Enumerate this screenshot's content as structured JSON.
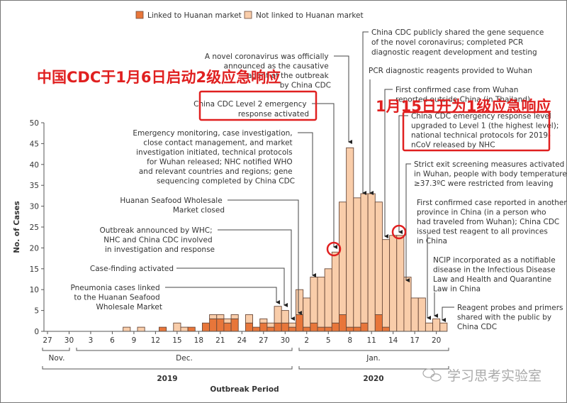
{
  "legend": {
    "linked_label": "Linked to Huanan market",
    "not_linked_label": "Not linked to Huanan market"
  },
  "colors": {
    "linked": "#e8763a",
    "not_linked": "#f9cdaa",
    "bar_stroke": "#6b4a3a",
    "highlight_red": "#e02020",
    "axis": "#555555"
  },
  "overlays": {
    "level2_note": "中国CDC于1月6日启动2级应急响应",
    "level1_note": "1月15日开为1级应急响应",
    "watermark": "学习思考实验室"
  },
  "annotations": [
    {
      "id": "gene-seq",
      "lines": [
        "China CDC publicly shared the gene sequence",
        "of the novel coronavirus; completed PCR",
        "diagnostic reagent development and testing"
      ]
    },
    {
      "id": "novel-cov",
      "lines": [
        "A novel coronavirus was officially",
        "announced as the causative",
        "agent of the outbreak",
        "by China CDC"
      ]
    },
    {
      "id": "pcr-wuhan",
      "lines": [
        "PCR diagnostic reagents provided to Wuhan"
      ]
    },
    {
      "id": "first-thailand",
      "lines": [
        "First confirmed case from Wuhan",
        "reported outside China (in Thailand)"
      ]
    },
    {
      "id": "level2",
      "lines": [
        "China CDC Level 2 emergency",
        "response activated"
      ]
    },
    {
      "id": "level1",
      "lines": [
        "China CDC emergency response level",
        "upgraded to Level 1 (the highest level);",
        "national technical protocols for 2019-",
        "nCoV released by NHC"
      ]
    },
    {
      "id": "emergency-monitoring",
      "lines": [
        "Emergency monitoring, case investigation,",
        "close contact management, and market",
        "investigation initiated, technical protocols",
        "for Wuhan released; NHC notified WHO",
        "and relevant countries and regions; gene",
        "sequencing completed by China CDC"
      ]
    },
    {
      "id": "exit-screening",
      "lines": [
        "Strict exit screening measures activated",
        "in Wuhan, people with body temperature",
        "≥37.3ºC were restricted from leaving"
      ]
    },
    {
      "id": "market-closed",
      "lines": [
        "Huanan Seafood Wholesale",
        "Market closed"
      ]
    },
    {
      "id": "first-province",
      "lines": [
        "First confirmed case reported in another",
        "province in China (in a person who",
        "had traveled from Wuhan); China CDC",
        "issued test reagent to all provinces",
        "in China"
      ]
    },
    {
      "id": "outbreak-announced",
      "lines": [
        "Outbreak announced by WHC;",
        "NHC and China CDC involved",
        "in investigation and response"
      ]
    },
    {
      "id": "case-finding",
      "lines": [
        "Case-finding activated"
      ]
    },
    {
      "id": "ncip",
      "lines": [
        "NCIP incorporated as a notifiable",
        "disease in the Infectious Disease",
        "Law and Health and Quarantine",
        "Law in China"
      ]
    },
    {
      "id": "pneumonia-linked",
      "lines": [
        "Pneumonia cases linked",
        "to the Huanan Seafood",
        "Wholesale Market"
      ]
    },
    {
      "id": "reagent-probes",
      "lines": [
        "Reagent probes and primers",
        "shared with the public by",
        "China CDC"
      ]
    }
  ],
  "chart_data": {
    "type": "bar",
    "stacked": true,
    "title": "",
    "xlabel": "Outbreak Period",
    "ylabel": "No. of Cases",
    "ylim": [
      0,
      50
    ],
    "yticks": [
      0,
      5,
      10,
      15,
      20,
      25,
      30,
      35,
      40,
      45,
      50
    ],
    "xtick_labels": [
      "27",
      "30",
      "3",
      "6",
      "9",
      "12",
      "15",
      "18",
      "21",
      "24",
      "27",
      "30",
      "2",
      "5",
      "8",
      "11",
      "14",
      "17",
      "20"
    ],
    "month_labels": [
      "Nov.",
      "Dec.",
      "Jan."
    ],
    "year_labels": [
      "2019",
      "2020"
    ],
    "legend_position": "top",
    "grid": false,
    "categories": [
      "Nov 27",
      "Nov 28",
      "Nov 29",
      "Nov 30",
      "Dec 1",
      "Dec 2",
      "Dec 3",
      "Dec 4",
      "Dec 5",
      "Dec 6",
      "Dec 7",
      "Dec 8",
      "Dec 9",
      "Dec 10",
      "Dec 11",
      "Dec 12",
      "Dec 13",
      "Dec 14",
      "Dec 15",
      "Dec 16",
      "Dec 17",
      "Dec 18",
      "Dec 19",
      "Dec 20",
      "Dec 21",
      "Dec 22",
      "Dec 23",
      "Dec 24",
      "Dec 25",
      "Dec 26",
      "Dec 27",
      "Dec 28",
      "Dec 29",
      "Dec 30",
      "Dec 31",
      "Jan 1",
      "Jan 2",
      "Jan 3",
      "Jan 4",
      "Jan 5",
      "Jan 6",
      "Jan 7",
      "Jan 8",
      "Jan 9",
      "Jan 10",
      "Jan 11",
      "Jan 12",
      "Jan 13",
      "Jan 14",
      "Jan 15",
      "Jan 16",
      "Jan 17",
      "Jan 18",
      "Jan 19",
      "Jan 20",
      "Jan 21"
    ],
    "series": [
      {
        "name": "Linked to Huanan market",
        "values": [
          0,
          0,
          0,
          0,
          0,
          0,
          0,
          0,
          0,
          0,
          0,
          0,
          0,
          0,
          0,
          0,
          1,
          0,
          0,
          0,
          1,
          0,
          2,
          3,
          3,
          2,
          3,
          0,
          2,
          1,
          2,
          1,
          2,
          2,
          1,
          4,
          1,
          2,
          1,
          1,
          2,
          4,
          1,
          1,
          2,
          0,
          4,
          1,
          0,
          0,
          0,
          0,
          0,
          0,
          0,
          0
        ]
      },
      {
        "name": "Not linked to Huanan market",
        "values": [
          0,
          0,
          0,
          0,
          0,
          0,
          0,
          0,
          0,
          0,
          0,
          1,
          0,
          1,
          0,
          0,
          0,
          0,
          2,
          1,
          0,
          0,
          0,
          1,
          1,
          1,
          1,
          0,
          2,
          0,
          1,
          1,
          4,
          3,
          1,
          6,
          7,
          11,
          12,
          14,
          17,
          27,
          43,
          31,
          31,
          33,
          27,
          21,
          23,
          23,
          13,
          8,
          8,
          2,
          3,
          2
        ]
      }
    ]
  }
}
